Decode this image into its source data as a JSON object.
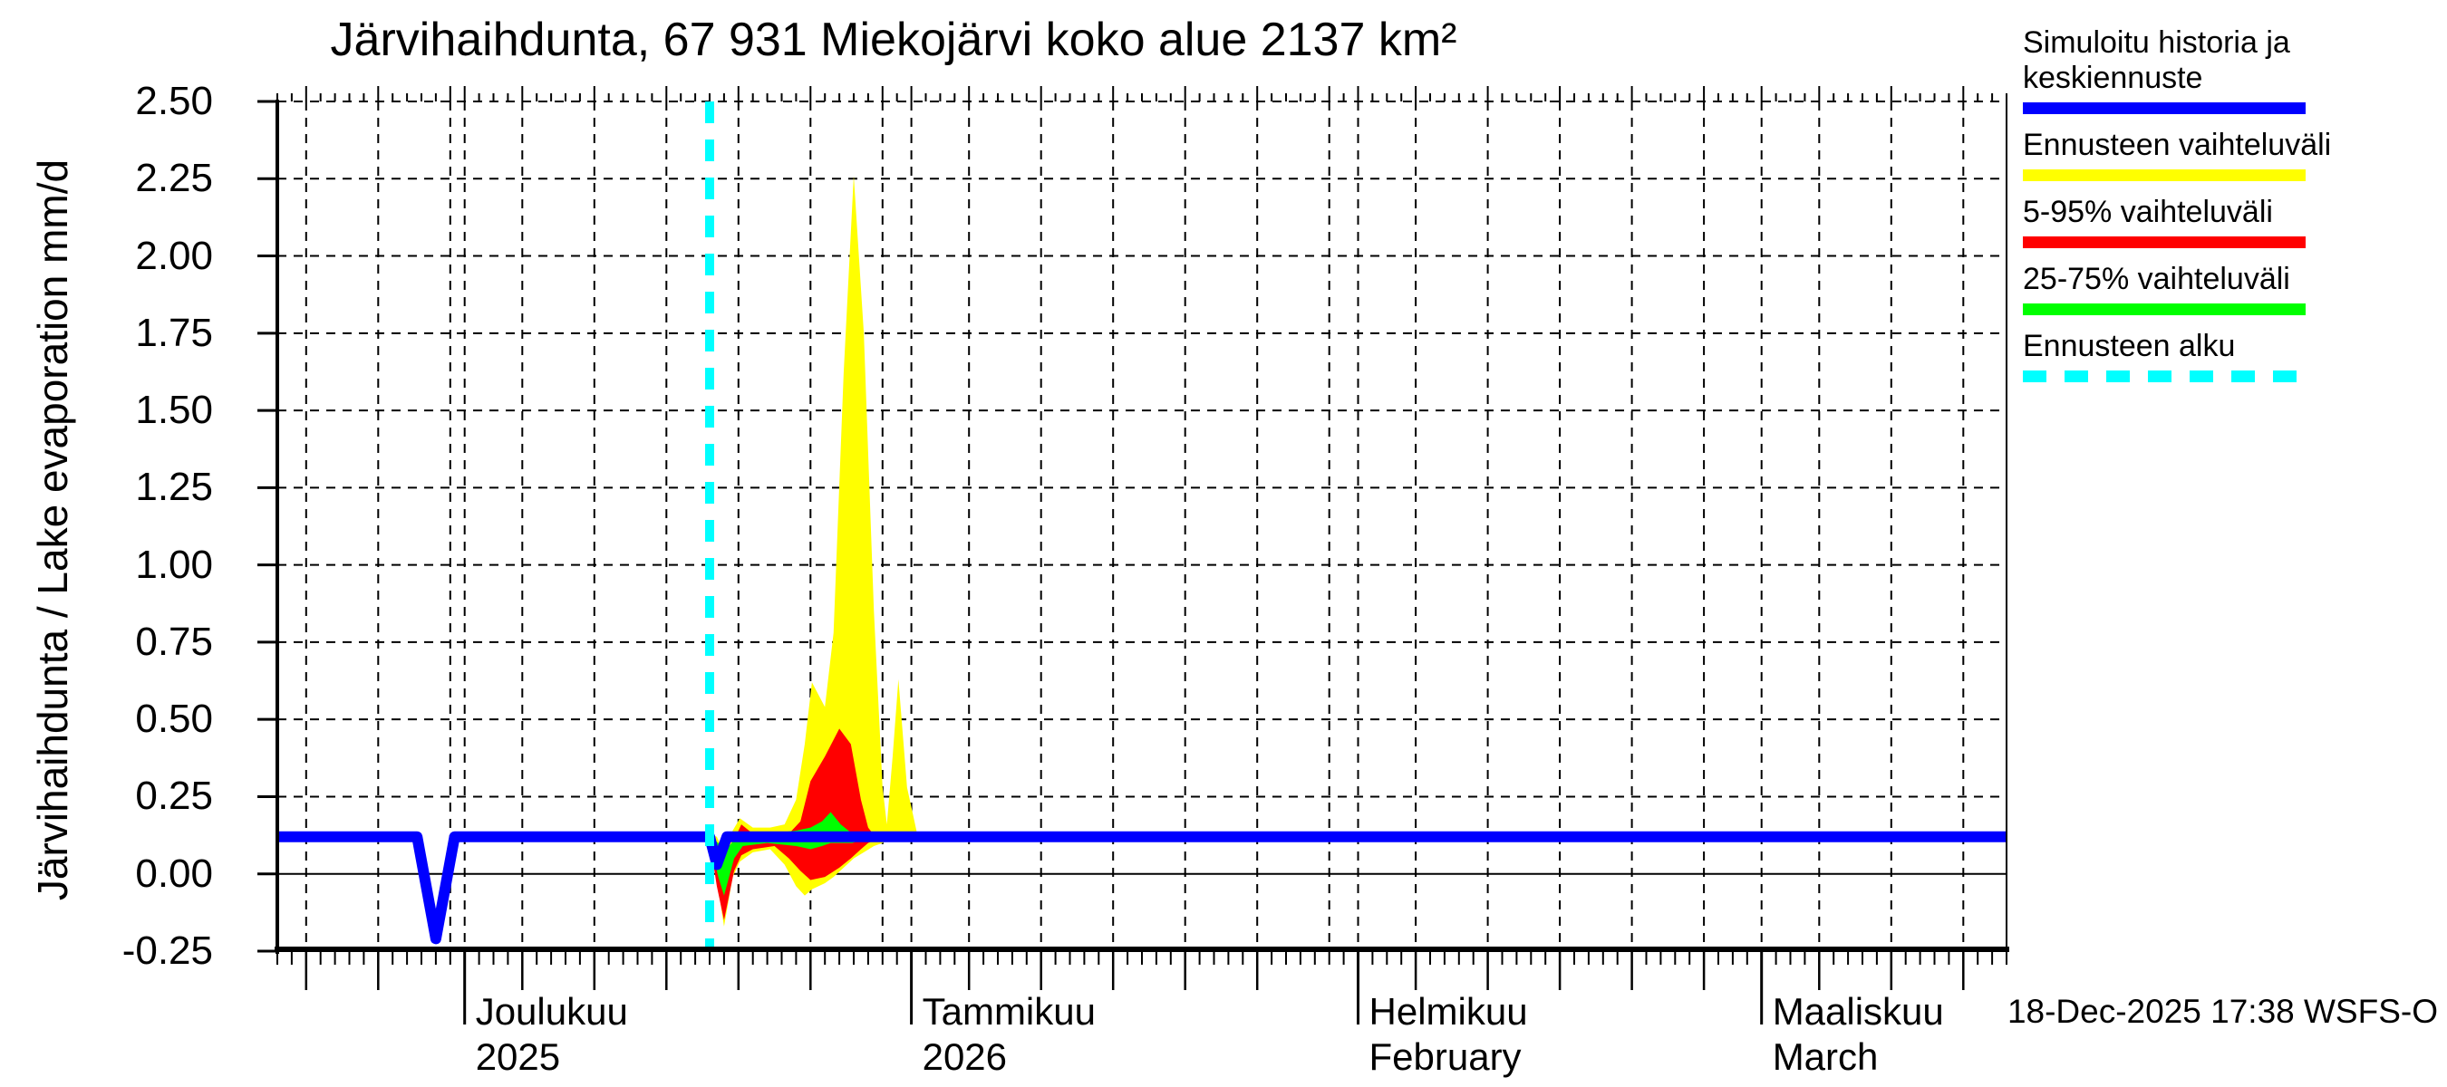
{
  "title": "Järvihaihdunta, 67 931 Miekojärvi koko alue 2137 km²",
  "timestamp": "18-Dec-2025 17:38 WSFS-O",
  "y_axis": {
    "label": "Järvihaihdunta / Lake evaporation  mm/d",
    "tick_labels": [
      "2.50",
      "2.25",
      "2.00",
      "1.75",
      "1.50",
      "1.25",
      "1.00",
      "0.75",
      "0.50",
      "0.25",
      "0.00",
      "-0.25"
    ],
    "tick_values": [
      2.5,
      2.25,
      2.0,
      1.75,
      1.5,
      1.25,
      1.0,
      0.75,
      0.5,
      0.25,
      0.0,
      -0.25
    ]
  },
  "legend": {
    "items": [
      {
        "label": "Simuloitu historia ja keskiennuste",
        "color": "#0000ff",
        "style": "solid"
      },
      {
        "label": "Ennusteen vaihteluväli",
        "color": "#ffff00",
        "style": "solid"
      },
      {
        "label": "5-95% vaihteluväli",
        "color": "#ff0000",
        "style": "solid"
      },
      {
        "label": "25-75% vaihteluväli",
        "color": "#00ff00",
        "style": "solid"
      },
      {
        "label": "Ennusteen alku",
        "color": "#00ffff",
        "style": "dashed"
      }
    ]
  },
  "chart_data": {
    "type": "area",
    "title": "Järvihaihdunta, 67 931 Miekojärvi koko alue 2137 km²",
    "ylabel": "Järvihaihdunta / Lake evaporation  mm/d",
    "unit": "mm/d",
    "ylim": [
      -0.25,
      2.5
    ],
    "ytick_step": 0.25,
    "x_days_total": 120,
    "x_start": "18-Nov-2025",
    "x_end": "18-Mar-2026",
    "forecast_start_day_offset": 30,
    "forecast_start_date": "18-Dec-2025",
    "months": [
      {
        "label_line1": "Joulukuu",
        "label_line2": "2025",
        "first_day_offset": 13,
        "days": 31
      },
      {
        "label_line1": "Tammikuu",
        "label_line2": "2026",
        "first_day_offset": 44,
        "days": 31
      },
      {
        "label_line1": "Helmikuu",
        "label_line2": "February",
        "first_day_offset": 75,
        "days": 28
      },
      {
        "label_line1": "Maaliskuu",
        "label_line2": "March",
        "first_day_offset": 103,
        "days": 31
      }
    ],
    "prev_month": {
      "first_day_offset": -17,
      "days": 30
    },
    "colors": {
      "median": "#0000ff",
      "minmax_band": "#ffff00",
      "p5_95_band": "#ff0000",
      "p25_75_band": "#00ff00",
      "forecast_line": "#00ffff",
      "grid": "#000000"
    },
    "series": {
      "median": [
        [
          0,
          0.12
        ],
        [
          9.7,
          0.12
        ],
        [
          11,
          -0.21
        ],
        [
          12.3,
          0.12
        ],
        [
          30,
          0.12
        ],
        [
          30.5,
          0.03
        ],
        [
          31.2,
          0.12
        ],
        [
          120,
          0.12
        ]
      ],
      "minmax_band": [
        [
          30,
          0.1,
          0.13
        ],
        [
          30.5,
          -0.02,
          0.12
        ],
        [
          31,
          -0.17,
          0.07
        ],
        [
          31.6,
          -0.01,
          0.14
        ],
        [
          32.1,
          0.04,
          0.18
        ],
        [
          33,
          0.07,
          0.15
        ],
        [
          34.2,
          0.08,
          0.15
        ],
        [
          35.2,
          0.03,
          0.16
        ],
        [
          36,
          -0.04,
          0.24
        ],
        [
          36.6,
          -0.07,
          0.42
        ],
        [
          37.1,
          -0.05,
          0.62
        ],
        [
          38,
          -0.03,
          0.54
        ],
        [
          38.6,
          -0.01,
          0.78
        ],
        [
          39.3,
          0.02,
          1.62
        ],
        [
          40,
          0.05,
          2.26
        ],
        [
          40.7,
          0.07,
          1.75
        ],
        [
          41.4,
          0.09,
          0.85
        ],
        [
          42,
          0.1,
          0.28
        ],
        [
          42.3,
          0.11,
          0.16
        ],
        [
          42.7,
          0.11,
          0.38
        ],
        [
          43.1,
          0.11,
          0.63
        ],
        [
          43.7,
          0.11,
          0.28
        ],
        [
          44.4,
          0.11,
          0.13
        ],
        [
          46,
          0.11,
          0.13
        ]
      ],
      "p5_95_band": [
        [
          30,
          0.11,
          0.12
        ],
        [
          30.5,
          -0.04,
          0.1
        ],
        [
          31,
          -0.15,
          0.05
        ],
        [
          31.7,
          0.01,
          0.11
        ],
        [
          32.2,
          0.06,
          0.16
        ],
        [
          33,
          0.08,
          0.13
        ],
        [
          34.5,
          0.09,
          0.13
        ],
        [
          35.5,
          0.05,
          0.13
        ],
        [
          36.3,
          0.01,
          0.17
        ],
        [
          37,
          -0.02,
          0.3
        ],
        [
          38,
          -0.01,
          0.38
        ],
        [
          39,
          0.02,
          0.47
        ],
        [
          39.8,
          0.05,
          0.42
        ],
        [
          40.5,
          0.08,
          0.24
        ],
        [
          41,
          0.1,
          0.15
        ],
        [
          41.5,
          0.11,
          0.12
        ]
      ],
      "p25_75_band": [
        [
          30,
          0.11,
          0.12
        ],
        [
          30.6,
          -0.01,
          0.1
        ],
        [
          31,
          -0.07,
          0.07
        ],
        [
          31.7,
          0.05,
          0.11
        ],
        [
          32.3,
          0.09,
          0.13
        ],
        [
          34,
          0.1,
          0.13
        ],
        [
          36,
          0.09,
          0.14
        ],
        [
          37,
          0.08,
          0.15
        ],
        [
          37.8,
          0.09,
          0.17
        ],
        [
          38.4,
          0.1,
          0.2
        ],
        [
          39.1,
          0.1,
          0.16
        ],
        [
          39.9,
          0.1,
          0.13
        ],
        [
          40.6,
          0.11,
          0.12
        ]
      ]
    }
  }
}
